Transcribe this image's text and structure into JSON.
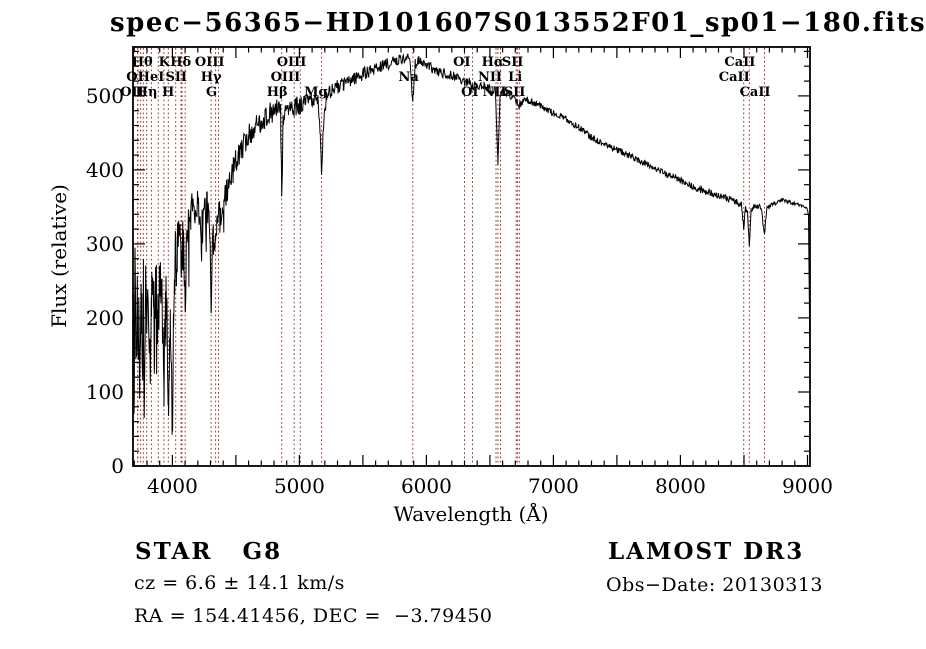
{
  "title": "spec−56365−HD101607S013552F01_sp01−180.fits",
  "chart_data": {
    "type": "line",
    "title": "spec−56365−HD101607S013552F01_sp01−180.fits",
    "xlabel": "Wavelength (Å)",
    "ylabel": "Flux (relative)",
    "xlim": [
      3690,
      9020
    ],
    "ylim": [
      0,
      566
    ],
    "grid": false,
    "xticks_labeled": [
      4000,
      5000,
      6000,
      7000,
      8000,
      9000
    ],
    "xtick_minor_step": 100,
    "xtick_major_step": 500,
    "yticks_labeled": [
      0,
      100,
      200,
      300,
      400,
      500
    ],
    "ytick_minor_step": 20,
    "ytick_major_step": 100,
    "line_color": "#000000",
    "spectral_line_color": "#9a3430",
    "noise_seed": 13,
    "spectral_lines": [
      {
        "label": "OI",
        "wavelength": 3727,
        "row": 2
      },
      {
        "label": "OII",
        "wavelength": 3727,
        "row": 3
      },
      {
        "label": "",
        "wavelength": 3750,
        "row": 0
      },
      {
        "label": "",
        "wavelength": 3771,
        "row": 0
      },
      {
        "label": "Hθ",
        "wavelength": 3798,
        "row": 1
      },
      {
        "label": "Hη",
        "wavelength": 3835,
        "row": 3
      },
      {
        "label": "HeI",
        "wavelength": 3889,
        "row": 2
      },
      {
        "label": "K",
        "wavelength": 3933,
        "row": 1
      },
      {
        "label": "H",
        "wavelength": 3968,
        "row": 3
      },
      {
        "label": "",
        "wavelength": 4026,
        "row": 0
      },
      {
        "label": "SII",
        "wavelength": 4068,
        "row": 2
      },
      {
        "label": "",
        "wavelength": 4076,
        "row": 0
      },
      {
        "label": "Hδ",
        "wavelength": 4101,
        "row": 1
      },
      {
        "label": "G",
        "wavelength": 4305,
        "row": 3
      },
      {
        "label": "Hγ",
        "wavelength": 4340,
        "row": 2
      },
      {
        "label": "OIII",
        "wavelength": 4363,
        "row": 1
      },
      {
        "label": "Hβ",
        "wavelength": 4861,
        "row": 3
      },
      {
        "label": "OIII",
        "wavelength": 4959,
        "row": 2
      },
      {
        "label": "OIII",
        "wavelength": 5007,
        "row": 1
      },
      {
        "label": "Mg",
        "wavelength": 5175,
        "row": 3
      },
      {
        "label": "Na",
        "wavelength": 5893,
        "row": 2
      },
      {
        "label": "OI",
        "wavelength": 6300,
        "row": 1
      },
      {
        "label": "OI",
        "wavelength": 6363,
        "row": 3
      },
      {
        "label": "NII",
        "wavelength": 6548,
        "row": 2
      },
      {
        "label": "Hα",
        "wavelength": 6563,
        "row": 1
      },
      {
        "label": "NII",
        "wavelength": 6583,
        "row": 3
      },
      {
        "label": "Li",
        "wavelength": 6707,
        "row": 2
      },
      {
        "label": "SII",
        "wavelength": 6716,
        "row": 1
      },
      {
        "label": "SII",
        "wavelength": 6731,
        "row": 3
      },
      {
        "label": "CaII",
        "wavelength": 8498,
        "row": 2
      },
      {
        "label": "CaII",
        "wavelength": 8542,
        "row": 1
      },
      {
        "label": "CaII",
        "wavelength": 8662,
        "row": 3
      }
    ],
    "spectrum_envelope": [
      [
        3690,
        4
      ],
      [
        3694,
        225
      ],
      [
        3700,
        150
      ],
      [
        3706,
        255
      ],
      [
        3712,
        180
      ],
      [
        3718,
        135
      ],
      [
        3724,
        240
      ],
      [
        3730,
        160
      ],
      [
        3736,
        250
      ],
      [
        3742,
        120
      ],
      [
        3748,
        210
      ],
      [
        3754,
        255
      ],
      [
        3760,
        190
      ],
      [
        3766,
        150
      ],
      [
        3772,
        230
      ],
      [
        3778,
        110
      ],
      [
        3786,
        215
      ],
      [
        3792,
        250
      ],
      [
        3798,
        165
      ],
      [
        3806,
        235
      ],
      [
        3814,
        200
      ],
      [
        3822,
        160
      ],
      [
        3830,
        135
      ],
      [
        3836,
        215
      ],
      [
        3844,
        255
      ],
      [
        3852,
        230
      ],
      [
        3860,
        145
      ],
      [
        3868,
        235
      ],
      [
        3876,
        255
      ],
      [
        3884,
        200
      ],
      [
        3890,
        170
      ],
      [
        3898,
        255
      ],
      [
        3906,
        265
      ],
      [
        3914,
        230
      ],
      [
        3922,
        195
      ],
      [
        3928,
        150
      ],
      [
        3933,
        92
      ],
      [
        3940,
        190
      ],
      [
        3948,
        235
      ],
      [
        3956,
        205
      ],
      [
        3962,
        150
      ],
      [
        3968,
        88
      ],
      [
        3976,
        140
      ],
      [
        3984,
        205
      ],
      [
        3992,
        120
      ],
      [
        4000,
        62
      ],
      [
        4008,
        200
      ],
      [
        4016,
        255
      ],
      [
        4024,
        285
      ],
      [
        4032,
        270
      ],
      [
        4040,
        295
      ],
      [
        4050,
        305
      ],
      [
        4060,
        312
      ],
      [
        4068,
        265
      ],
      [
        4076,
        290
      ],
      [
        4084,
        305
      ],
      [
        4092,
        270
      ],
      [
        4101,
        212
      ],
      [
        4110,
        290
      ],
      [
        4120,
        325
      ],
      [
        4132,
        340
      ],
      [
        4145,
        332
      ],
      [
        4158,
        345
      ],
      [
        4172,
        350
      ],
      [
        4186,
        338
      ],
      [
        4200,
        348
      ],
      [
        4214,
        352
      ],
      [
        4227,
        295
      ],
      [
        4238,
        340
      ],
      [
        4250,
        350
      ],
      [
        4262,
        342
      ],
      [
        4275,
        352
      ],
      [
        4288,
        335
      ],
      [
        4296,
        300
      ],
      [
        4305,
        210
      ],
      [
        4314,
        285
      ],
      [
        4324,
        315
      ],
      [
        4334,
        305
      ],
      [
        4340,
        298
      ],
      [
        4348,
        325
      ],
      [
        4356,
        335
      ],
      [
        4363,
        342
      ],
      [
        4372,
        348
      ],
      [
        4382,
        340
      ],
      [
        4392,
        352
      ],
      [
        4405,
        358
      ],
      [
        4420,
        366
      ],
      [
        4435,
        375
      ],
      [
        4450,
        385
      ],
      [
        4465,
        392
      ],
      [
        4480,
        400
      ],
      [
        4500,
        412
      ],
      [
        4520,
        420
      ],
      [
        4545,
        428
      ],
      [
        4570,
        436
      ],
      [
        4600,
        446
      ],
      [
        4630,
        452
      ],
      [
        4665,
        460
      ],
      [
        4700,
        466
      ],
      [
        4735,
        472
      ],
      [
        4770,
        476
      ],
      [
        4805,
        480
      ],
      [
        4835,
        482
      ],
      [
        4852,
        478
      ],
      [
        4861,
        362
      ],
      [
        4872,
        472
      ],
      [
        4890,
        478
      ],
      [
        4915,
        482
      ],
      [
        4940,
        484
      ],
      [
        4959,
        480
      ],
      [
        4980,
        487
      ],
      [
        5007,
        485
      ],
      [
        5035,
        490
      ],
      [
        5065,
        493
      ],
      [
        5095,
        495
      ],
      [
        5125,
        496
      ],
      [
        5150,
        488
      ],
      [
        5165,
        450
      ],
      [
        5175,
        388
      ],
      [
        5186,
        452
      ],
      [
        5198,
        482
      ],
      [
        5215,
        500
      ],
      [
        5240,
        506
      ],
      [
        5270,
        509
      ],
      [
        5305,
        512
      ],
      [
        5345,
        516
      ],
      [
        5390,
        520
      ],
      [
        5440,
        525
      ],
      [
        5495,
        529
      ],
      [
        5550,
        533
      ],
      [
        5610,
        538
      ],
      [
        5670,
        542
      ],
      [
        5730,
        545
      ],
      [
        5790,
        549
      ],
      [
        5840,
        551
      ],
      [
        5870,
        549
      ],
      [
        5893,
        494
      ],
      [
        5912,
        544
      ],
      [
        5940,
        547
      ],
      [
        5975,
        543
      ],
      [
        6010,
        540
      ],
      [
        6050,
        537
      ],
      [
        6095,
        531
      ],
      [
        6140,
        531
      ],
      [
        6190,
        528
      ],
      [
        6240,
        526
      ],
      [
        6290,
        520
      ],
      [
        6310,
        517
      ],
      [
        6340,
        519
      ],
      [
        6363,
        511
      ],
      [
        6390,
        516
      ],
      [
        6430,
        514
      ],
      [
        6470,
        511
      ],
      [
        6510,
        509
      ],
      [
        6542,
        506
      ],
      [
        6563,
        407
      ],
      [
        6580,
        503
      ],
      [
        6610,
        505
      ],
      [
        6650,
        502
      ],
      [
        6690,
        497
      ],
      [
        6716,
        489
      ],
      [
        6731,
        487
      ],
      [
        6760,
        494
      ],
      [
        6800,
        494
      ],
      [
        6850,
        491
      ],
      [
        6900,
        487
      ],
      [
        6950,
        482
      ],
      [
        7000,
        477
      ],
      [
        7060,
        472
      ],
      [
        7120,
        466
      ],
      [
        7180,
        460
      ],
      [
        7240,
        452
      ],
      [
        7300,
        444
      ],
      [
        7360,
        438
      ],
      [
        7420,
        433
      ],
      [
        7480,
        429
      ],
      [
        7540,
        424
      ],
      [
        7600,
        419
      ],
      [
        7660,
        414
      ],
      [
        7720,
        409
      ],
      [
        7780,
        404
      ],
      [
        7840,
        399
      ],
      [
        7900,
        393
      ],
      [
        7960,
        389
      ],
      [
        8020,
        384
      ],
      [
        8080,
        379
      ],
      [
        8140,
        374
      ],
      [
        8200,
        371
      ],
      [
        8260,
        368
      ],
      [
        8320,
        364
      ],
      [
        8380,
        361
      ],
      [
        8440,
        357
      ],
      [
        8480,
        352
      ],
      [
        8498,
        322
      ],
      [
        8512,
        348
      ],
      [
        8528,
        344
      ],
      [
        8542,
        297
      ],
      [
        8556,
        346
      ],
      [
        8576,
        351
      ],
      [
        8605,
        352
      ],
      [
        8635,
        349
      ],
      [
        8662,
        312
      ],
      [
        8680,
        347
      ],
      [
        8705,
        351
      ],
      [
        8735,
        354
      ],
      [
        8765,
        357
      ],
      [
        8800,
        360
      ],
      [
        8840,
        358
      ],
      [
        8880,
        355
      ],
      [
        8925,
        353
      ],
      [
        8965,
        351
      ],
      [
        8995,
        349
      ],
      [
        9008,
        340
      ],
      [
        9018,
        176
      ]
    ],
    "noise_profile": [
      [
        3690,
        55
      ],
      [
        4110,
        30
      ],
      [
        4430,
        18
      ],
      [
        4900,
        14
      ],
      [
        5250,
        10
      ],
      [
        5920,
        7
      ],
      [
        6420,
        6
      ],
      [
        7050,
        4.5
      ],
      [
        7700,
        4
      ],
      [
        8300,
        4.5
      ],
      [
        8720,
        3.5
      ],
      [
        9005,
        1
      ]
    ]
  },
  "annotations": {
    "class_label": "STAR   G8",
    "cz": "cz = 6.6 ± 14.1 km/s",
    "ra_dec": "RA = 154.41456, DEC =  −3.79450",
    "survey": "LAMOST DR3",
    "obs_date": "Obs−Date: 20130313"
  }
}
